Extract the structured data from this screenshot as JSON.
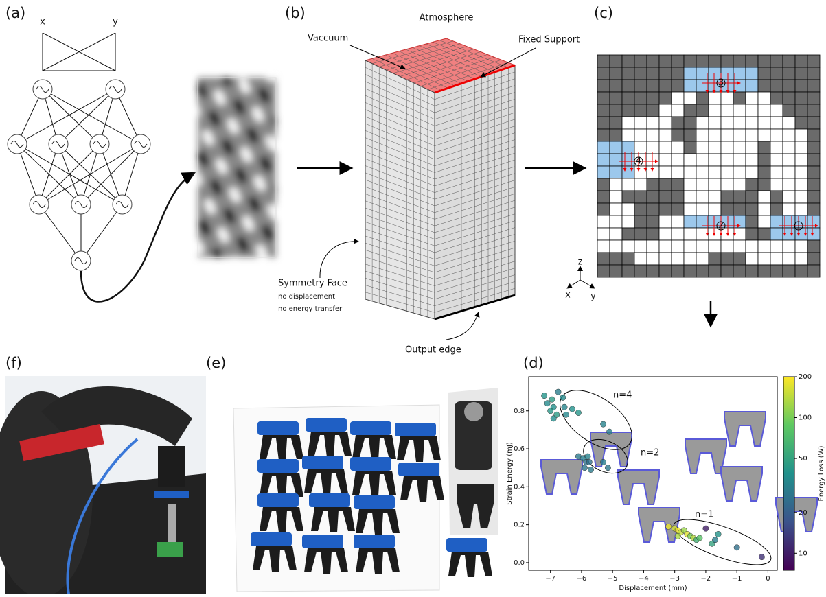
{
  "panels": {
    "a": {
      "label": "(a)",
      "inputs": [
        "x",
        "y"
      ]
    },
    "b": {
      "label": "(b)",
      "atmosphere": "Atmosphere",
      "vacuum": "Vaccuum",
      "fixed_support": "Fixed Support",
      "symmetry_face": "Symmetry Face",
      "symmetry_notes": [
        "no displacement",
        "no energy transfer"
      ],
      "output_edge": "Output edge"
    },
    "c": {
      "label": "(c)",
      "regions": [
        "1",
        "2",
        "3",
        "4"
      ],
      "axes": [
        "z",
        "x",
        "y"
      ]
    },
    "d": {
      "label": "(d)"
    },
    "e": {
      "label": "(e)"
    },
    "f": {
      "label": "(f)"
    }
  },
  "chart_data": {
    "type": "scatter",
    "xlabel": "Displacement (mm)",
    "ylabel": "Strain Energy (mJ)",
    "xlim": [
      -7.7,
      0.3
    ],
    "xticks": [
      {
        "value": -7,
        "label": "−7"
      },
      {
        "value": -6,
        "label": "−6"
      },
      {
        "value": -5,
        "label": "−5"
      },
      {
        "value": -4,
        "label": "−4"
      },
      {
        "value": -3,
        "label": "−3"
      },
      {
        "value": -2,
        "label": "−2"
      },
      {
        "value": -1,
        "label": "−1"
      },
      0
    ],
    "ylim": [
      -0.04,
      0.98
    ],
    "yticks": [
      {
        "value": 0,
        "label": "0.0"
      },
      0.2,
      0.4,
      0.6,
      0.8
    ],
    "annotations": [
      "n=4",
      "n=2",
      "n=1"
    ],
    "x": [
      -7.2,
      -7.1,
      -6.95,
      -6.9,
      -7.0,
      -6.75,
      -6.6,
      -6.8,
      -6.55,
      -6.3,
      -6.1,
      -6.9,
      -6.5,
      -5.3,
      -5.1,
      -6.1,
      -5.95,
      -5.85,
      -5.8,
      -5.9,
      -5.7,
      -5.75,
      -5.3,
      -5.15,
      -3.2,
      -3.0,
      -2.9,
      -2.8,
      -2.7,
      -2.6,
      -2.5,
      -2.4,
      -2.3,
      -2.2,
      -2.0,
      -1.8,
      -1.6,
      -1.7,
      -2.9,
      -1.0,
      -0.2
    ],
    "y": [
      0.88,
      0.84,
      0.86,
      0.82,
      0.8,
      0.9,
      0.87,
      0.78,
      0.82,
      0.81,
      0.79,
      0.76,
      0.78,
      0.73,
      0.69,
      0.56,
      0.55,
      0.53,
      0.56,
      0.5,
      0.49,
      0.53,
      0.53,
      0.5,
      0.19,
      0.18,
      0.17,
      0.16,
      0.17,
      0.15,
      0.14,
      0.13,
      0.12,
      0.13,
      0.18,
      0.1,
      0.15,
      0.12,
      0.14,
      0.08,
      0.03
    ],
    "c": [
      40,
      35,
      45,
      38,
      42,
      30,
      36,
      44,
      33,
      39,
      41,
      37,
      34,
      32,
      30,
      28,
      30,
      26,
      32,
      27,
      29,
      25,
      31,
      28,
      180,
      160,
      190,
      150,
      120,
      170,
      100,
      140,
      60,
      80,
      10,
      50,
      40,
      30,
      130,
      25,
      12
    ],
    "colorbar": {
      "label": "Energy Loss (W)",
      "scale": "log",
      "lim": [
        7.5,
        200
      ],
      "ticks": [
        10,
        20,
        50,
        100,
        200
      ]
    }
  }
}
